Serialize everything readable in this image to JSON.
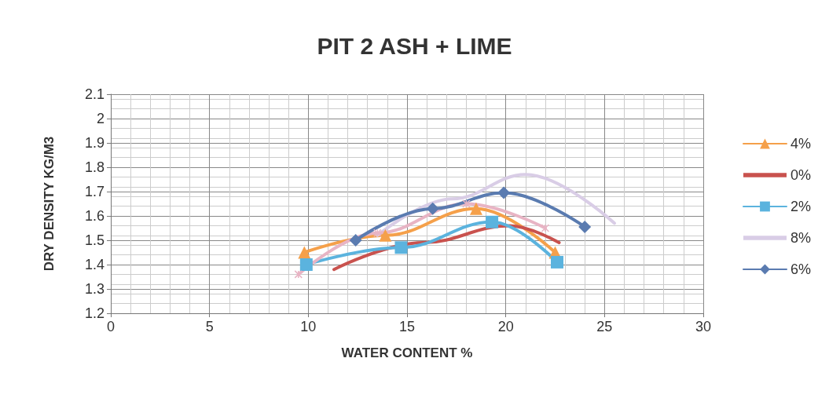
{
  "chart_data": {
    "type": "line",
    "title": "PIT 2 ASH + LIME",
    "xlabel": "WATER CONTENT %",
    "ylabel": "DRY DENSITY KG/M3",
    "xlim": [
      0,
      30
    ],
    "xticks": [
      0,
      5,
      10,
      15,
      20,
      25,
      30
    ],
    "ylim": [
      1.2,
      2.1
    ],
    "yticks": [
      1.2,
      1.3,
      1.4,
      1.5,
      1.6,
      1.7,
      1.8,
      1.9,
      2,
      2.1
    ],
    "grid": true,
    "legend": "right",
    "series": [
      {
        "name": "4%",
        "color": "#f5a04a",
        "marker": "triangle",
        "x": [
          9.8,
          13.9,
          18.5,
          22.5
        ],
        "values": [
          1.45,
          1.52,
          1.63,
          1.45
        ]
      },
      {
        "name": "0%",
        "color": "#c9524e",
        "marker": "none",
        "x": [
          11.3,
          15.8,
          20.2,
          22.7
        ],
        "values": [
          1.38,
          1.49,
          1.56,
          1.49
        ]
      },
      {
        "name": "2%",
        "color": "#5bb3de",
        "marker": "square",
        "x": [
          9.9,
          14.7,
          19.3,
          22.6
        ],
        "values": [
          1.4,
          1.47,
          1.575,
          1.41
        ]
      },
      {
        "name": "8%",
        "color": "#d9cde6",
        "marker": "none",
        "x": [
          13.5,
          17.3,
          21,
          25.5
        ],
        "values": [
          1.52,
          1.67,
          1.77,
          1.57
        ]
      },
      {
        "color": "#e8b4c4",
        "marker": "cross",
        "x": [
          9.5,
          13.5,
          18,
          22
        ],
        "values": [
          1.36,
          1.53,
          1.65,
          1.55
        ]
      },
      {
        "name": "6%",
        "color": "#5a7bb0",
        "marker": "diamond",
        "x": [
          12.4,
          16.3,
          19.9,
          24
        ],
        "values": [
          1.5,
          1.63,
          1.695,
          1.555
        ]
      }
    ]
  }
}
